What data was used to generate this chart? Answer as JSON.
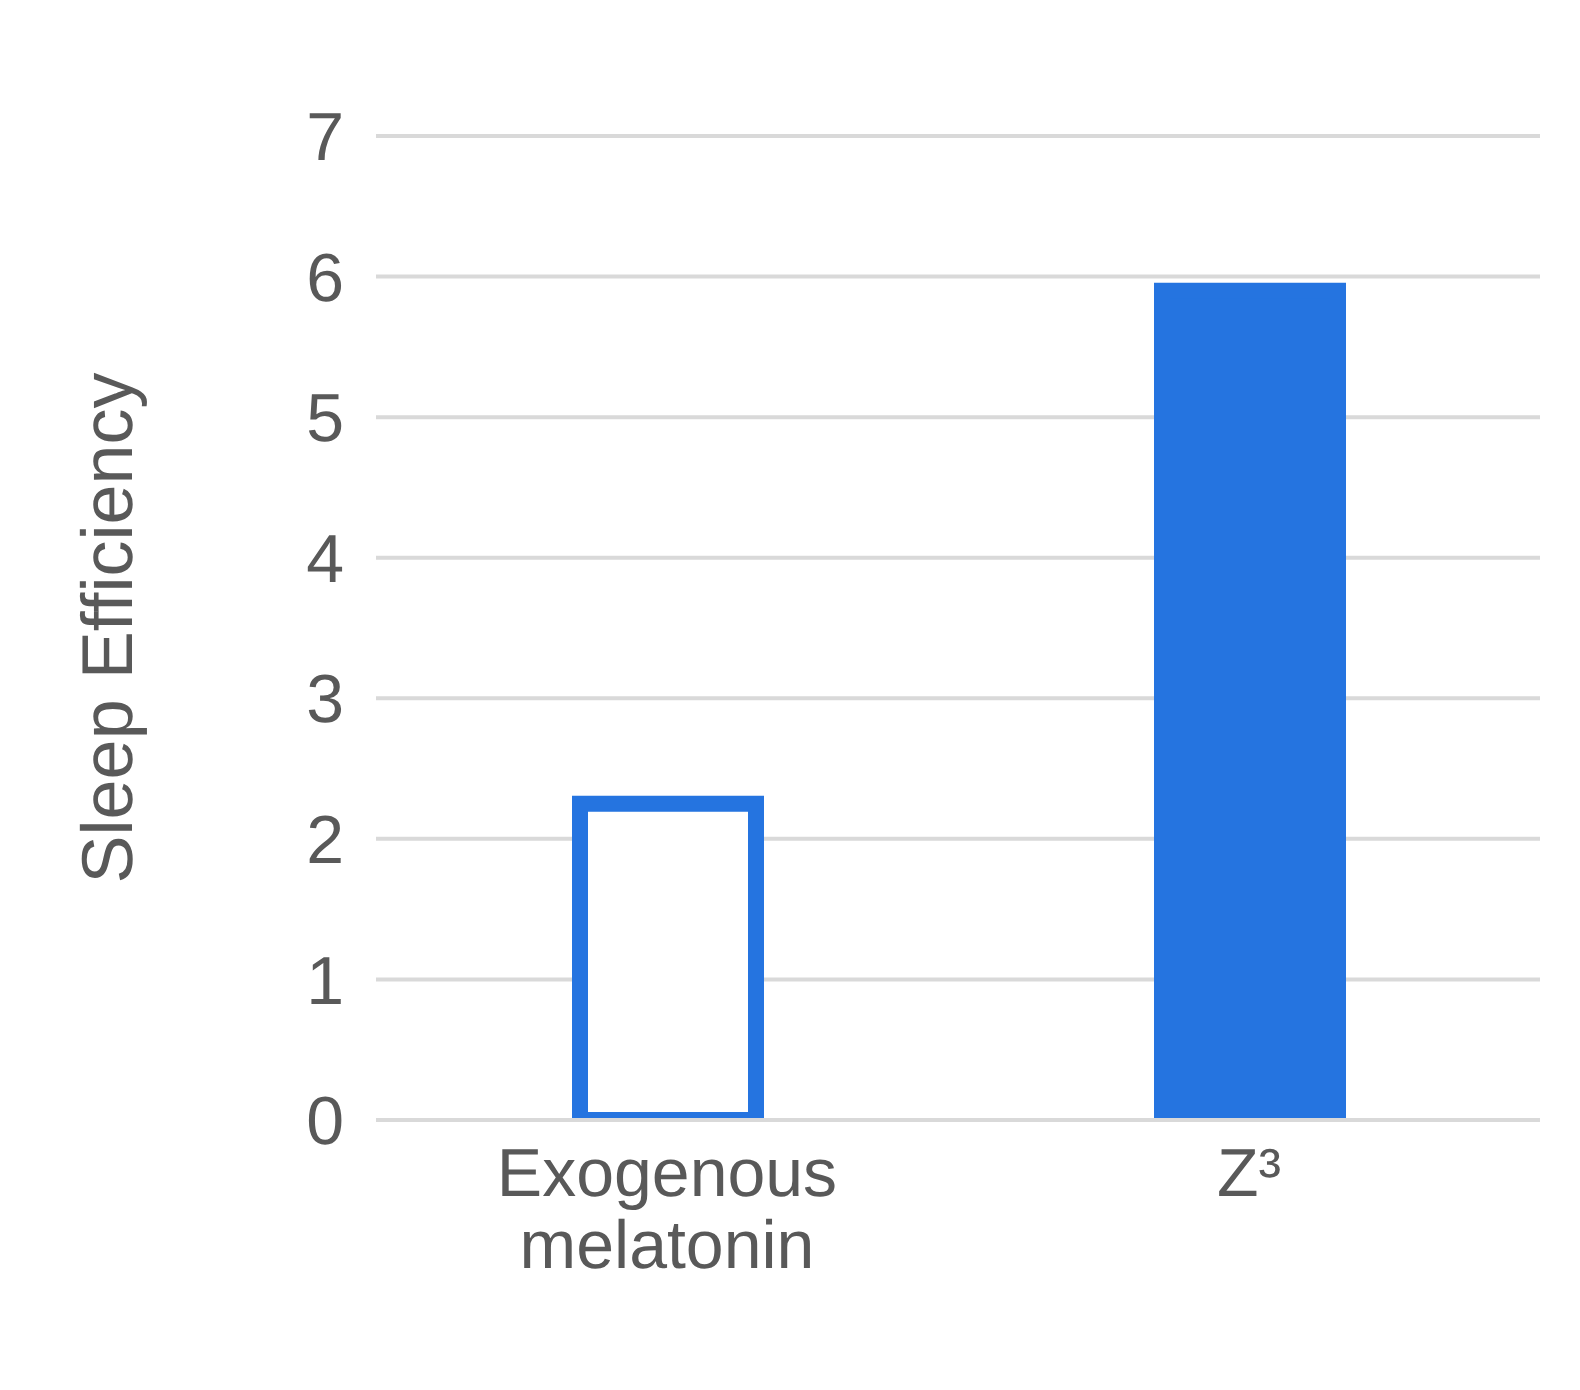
{
  "chart_data": {
    "type": "bar",
    "ylabel": "Sleep Efficiency",
    "categories": [
      "Exogenous melatonin",
      "Z³"
    ],
    "values": [
      2.25,
      5.9
    ],
    "color": "#2574e0",
    "colors": [
      "#ffffff",
      "#2574e0"
    ],
    "ylim": [
      0,
      7
    ],
    "yticks": [
      0,
      1,
      2,
      3,
      4,
      5,
      6,
      7
    ],
    "grid": "y"
  }
}
